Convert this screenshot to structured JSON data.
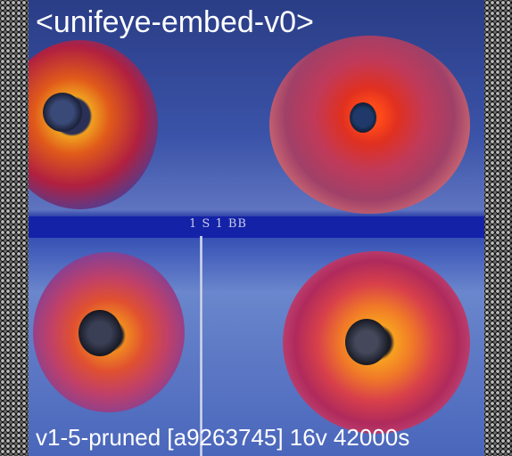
{
  "title": "<unifeye-embed-v0>",
  "footer": "v1-5-pruned [a9263745]  16v 42000s",
  "band_label": "1 S 1 BB"
}
